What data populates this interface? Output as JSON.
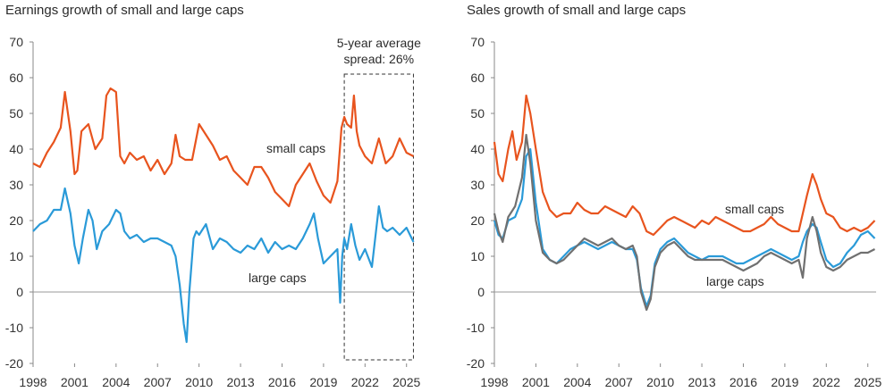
{
  "chart_data": [
    {
      "type": "line",
      "title": "Earnings growth of small and large caps",
      "xlabel": "",
      "ylabel": "",
      "xlim": [
        1998,
        2025.6
      ],
      "ylim": [
        -20,
        70
      ],
      "x_ticks": [
        "1998",
        "2001",
        "2004",
        "2007",
        "2010",
        "2013",
        "2016",
        "2019",
        "2022",
        "2025"
      ],
      "y_ticks": [
        "70",
        "60",
        "50",
        "40",
        "30",
        "20",
        "10",
        "0",
        "-10",
        "-20"
      ],
      "grid": false,
      "annotation": {
        "line1": "5-year average",
        "line2": "spread: 26%",
        "x_range": [
          2020.5,
          2025.5
        ],
        "y_range": [
          -19,
          61
        ]
      },
      "series": [
        {
          "name": "small caps",
          "color": "#e8541e",
          "x": [
            1998.0,
            1998.5,
            1999.0,
            1999.5,
            2000.0,
            2000.3,
            2000.7,
            2001.0,
            2001.2,
            2001.5,
            2002.0,
            2002.5,
            2003.0,
            2003.3,
            2003.6,
            2004.0,
            2004.3,
            2004.6,
            2005.0,
            2005.5,
            2006.0,
            2006.5,
            2007.0,
            2007.5,
            2008.0,
            2008.3,
            2008.6,
            2009.0,
            2009.5,
            2010.0,
            2010.5,
            2011.0,
            2011.5,
            2012.0,
            2012.5,
            2013.0,
            2013.5,
            2014.0,
            2014.5,
            2015.0,
            2015.5,
            2016.0,
            2016.5,
            2017.0,
            2017.5,
            2018.0,
            2018.5,
            2019.0,
            2019.5,
            2020.0,
            2020.3,
            2020.5,
            2020.7,
            2021.0,
            2021.2,
            2021.4,
            2021.6,
            2022.0,
            2022.5,
            2023.0,
            2023.5,
            2024.0,
            2024.5,
            2025.0,
            2025.5
          ],
          "values": [
            36,
            35,
            39,
            42,
            46,
            56,
            45,
            33,
            34,
            45,
            47,
            40,
            43,
            55,
            57,
            56,
            38,
            36,
            39,
            37,
            38,
            34,
            37,
            33,
            36,
            44,
            38,
            37,
            37,
            47,
            44,
            41,
            37,
            38,
            34,
            32,
            30,
            35,
            35,
            32,
            28,
            26,
            24,
            30,
            33,
            36,
            31,
            27,
            25,
            31,
            46,
            49,
            47,
            46,
            55,
            45,
            41,
            38,
            36,
            43,
            36,
            38,
            43,
            39,
            38
          ]
        },
        {
          "name": "large caps",
          "color": "#2a9ad8",
          "x": [
            1998.0,
            1998.5,
            1999.0,
            1999.5,
            2000.0,
            2000.3,
            2000.7,
            2001.0,
            2001.3,
            2001.6,
            2002.0,
            2002.3,
            2002.6,
            2003.0,
            2003.5,
            2004.0,
            2004.3,
            2004.6,
            2005.0,
            2005.5,
            2006.0,
            2006.5,
            2007.0,
            2007.5,
            2008.0,
            2008.3,
            2008.6,
            2008.9,
            2009.1,
            2009.3,
            2009.6,
            2009.8,
            2010.0,
            2010.5,
            2011.0,
            2011.5,
            2012.0,
            2012.5,
            2013.0,
            2013.5,
            2014.0,
            2014.5,
            2015.0,
            2015.5,
            2016.0,
            2016.5,
            2017.0,
            2017.5,
            2018.0,
            2018.3,
            2018.6,
            2019.0,
            2019.5,
            2020.0,
            2020.2,
            2020.35,
            2020.5,
            2020.7,
            2021.0,
            2021.3,
            2021.6,
            2022.0,
            2022.5,
            2023.0,
            2023.3,
            2023.6,
            2024.0,
            2024.5,
            2025.0,
            2025.5
          ],
          "values": [
            17,
            19,
            20,
            23,
            23,
            29,
            22,
            13,
            8,
            15,
            23,
            20,
            12,
            17,
            19,
            23,
            22,
            17,
            15,
            16,
            14,
            15,
            15,
            14,
            13,
            10,
            2,
            -9,
            -14,
            0,
            15,
            17,
            16,
            19,
            12,
            15,
            14,
            12,
            11,
            13,
            12,
            15,
            11,
            14,
            12,
            13,
            12,
            15,
            19,
            22,
            15,
            8,
            10,
            12,
            -3,
            10,
            15,
            12,
            19,
            13,
            9,
            12,
            7,
            24,
            18,
            17,
            18,
            16,
            18,
            14
          ]
        }
      ]
    },
    {
      "type": "line",
      "title": "Sales growth of small and large caps",
      "xlabel": "",
      "ylabel": "",
      "xlim": [
        1998,
        2025.6
      ],
      "ylim": [
        -20,
        70
      ],
      "x_ticks": [
        "1998",
        "2001",
        "2004",
        "2007",
        "2010",
        "2013",
        "2016",
        "2019",
        "2022",
        "2025"
      ],
      "y_ticks": [
        "70",
        "60",
        "50",
        "40",
        "30",
        "20",
        "10",
        "0",
        "-10",
        "-20"
      ],
      "grid": false,
      "series": [
        {
          "name": "small caps",
          "color": "#e8541e",
          "x": [
            1998.0,
            1998.3,
            1998.6,
            1999.0,
            1999.3,
            1999.6,
            2000.0,
            2000.3,
            2000.6,
            2001.0,
            2001.5,
            2002.0,
            2002.5,
            2003.0,
            2003.5,
            2004.0,
            2004.5,
            2005.0,
            2005.5,
            2006.0,
            2006.5,
            2007.0,
            2007.5,
            2008.0,
            2008.5,
            2009.0,
            2009.5,
            2010.0,
            2010.5,
            2011.0,
            2011.5,
            2012.0,
            2012.5,
            2013.0,
            2013.5,
            2014.0,
            2014.5,
            2015.0,
            2015.5,
            2016.0,
            2016.5,
            2017.0,
            2017.5,
            2018.0,
            2018.5,
            2019.0,
            2019.5,
            2020.0,
            2020.3,
            2020.6,
            2021.0,
            2021.3,
            2021.6,
            2022.0,
            2022.5,
            2023.0,
            2023.5,
            2024.0,
            2024.5,
            2025.0,
            2025.5
          ],
          "values": [
            42,
            33,
            31,
            40,
            45,
            37,
            42,
            55,
            50,
            40,
            28,
            23,
            21,
            22,
            22,
            25,
            23,
            22,
            22,
            24,
            23,
            22,
            21,
            24,
            22,
            17,
            16,
            18,
            20,
            21,
            20,
            19,
            18,
            20,
            19,
            21,
            20,
            19,
            18,
            17,
            17,
            18,
            19,
            21,
            19,
            18,
            17,
            17,
            22,
            27,
            33,
            30,
            26,
            22,
            21,
            18,
            17,
            18,
            17,
            18,
            20
          ]
        },
        {
          "name": "large caps",
          "color": "#2a9ad8",
          "x": [
            1998.0,
            1998.3,
            1998.6,
            1999.0,
            1999.5,
            2000.0,
            2000.3,
            2000.6,
            2001.0,
            2001.5,
            2002.0,
            2002.5,
            2003.0,
            2003.5,
            2004.0,
            2004.5,
            2005.0,
            2005.5,
            2006.0,
            2006.5,
            2007.0,
            2007.5,
            2008.0,
            2008.3,
            2008.6,
            2009.0,
            2009.3,
            2009.6,
            2010.0,
            2010.5,
            2011.0,
            2011.5,
            2012.0,
            2012.5,
            2013.0,
            2013.5,
            2014.0,
            2014.5,
            2015.0,
            2015.5,
            2016.0,
            2016.5,
            2017.0,
            2017.5,
            2018.0,
            2018.5,
            2019.0,
            2019.5,
            2020.0,
            2020.3,
            2020.6,
            2021.0,
            2021.3,
            2021.6,
            2022.0,
            2022.5,
            2023.0,
            2023.5,
            2024.0,
            2024.5,
            2025.0,
            2025.5
          ],
          "values": [
            20,
            16,
            15,
            20,
            21,
            26,
            38,
            40,
            25,
            12,
            9,
            8,
            10,
            12,
            13,
            14,
            13,
            12,
            13,
            14,
            13,
            12,
            12,
            9,
            1,
            -4,
            -1,
            8,
            12,
            14,
            15,
            13,
            11,
            10,
            9,
            10,
            10,
            10,
            9,
            8,
            8,
            9,
            10,
            11,
            12,
            11,
            10,
            9,
            10,
            14,
            17,
            19,
            18,
            14,
            9,
            7,
            8,
            11,
            13,
            16,
            17,
            15
          ]
        },
        {
          "name": "large caps (gray)",
          "color": "#707070",
          "x": [
            1998.0,
            1998.3,
            1998.6,
            1999.0,
            1999.5,
            2000.0,
            2000.3,
            2000.6,
            2001.0,
            2001.5,
            2002.0,
            2002.5,
            2003.0,
            2003.5,
            2004.0,
            2004.5,
            2005.0,
            2005.5,
            2006.0,
            2006.5,
            2007.0,
            2007.5,
            2008.0,
            2008.3,
            2008.6,
            2009.0,
            2009.3,
            2009.6,
            2010.0,
            2010.5,
            2011.0,
            2011.5,
            2012.0,
            2012.5,
            2013.0,
            2013.5,
            2014.0,
            2014.5,
            2015.0,
            2015.5,
            2016.0,
            2016.5,
            2017.0,
            2017.5,
            2018.0,
            2018.5,
            2019.0,
            2019.5,
            2020.0,
            2020.3,
            2020.6,
            2021.0,
            2021.3,
            2021.6,
            2022.0,
            2022.5,
            2023.0,
            2023.5,
            2024.0,
            2024.5,
            2025.0,
            2025.5
          ],
          "values": [
            22,
            17,
            14,
            21,
            24,
            32,
            44,
            36,
            20,
            11,
            9,
            8,
            9,
            11,
            13,
            15,
            14,
            13,
            14,
            15,
            13,
            12,
            13,
            10,
            0,
            -5,
            -2,
            7,
            11,
            13,
            14,
            12,
            10,
            9,
            9,
            9,
            9,
            9,
            8,
            7,
            6,
            7,
            8,
            10,
            11,
            10,
            9,
            8,
            9,
            4,
            15,
            21,
            17,
            11,
            7,
            6,
            7,
            9,
            10,
            11,
            11,
            12
          ]
        }
      ],
      "labels": {
        "small_caps": "small caps",
        "large_caps": "large caps"
      }
    }
  ],
  "labels": {
    "small_caps": "small caps",
    "large_caps": "large caps"
  }
}
